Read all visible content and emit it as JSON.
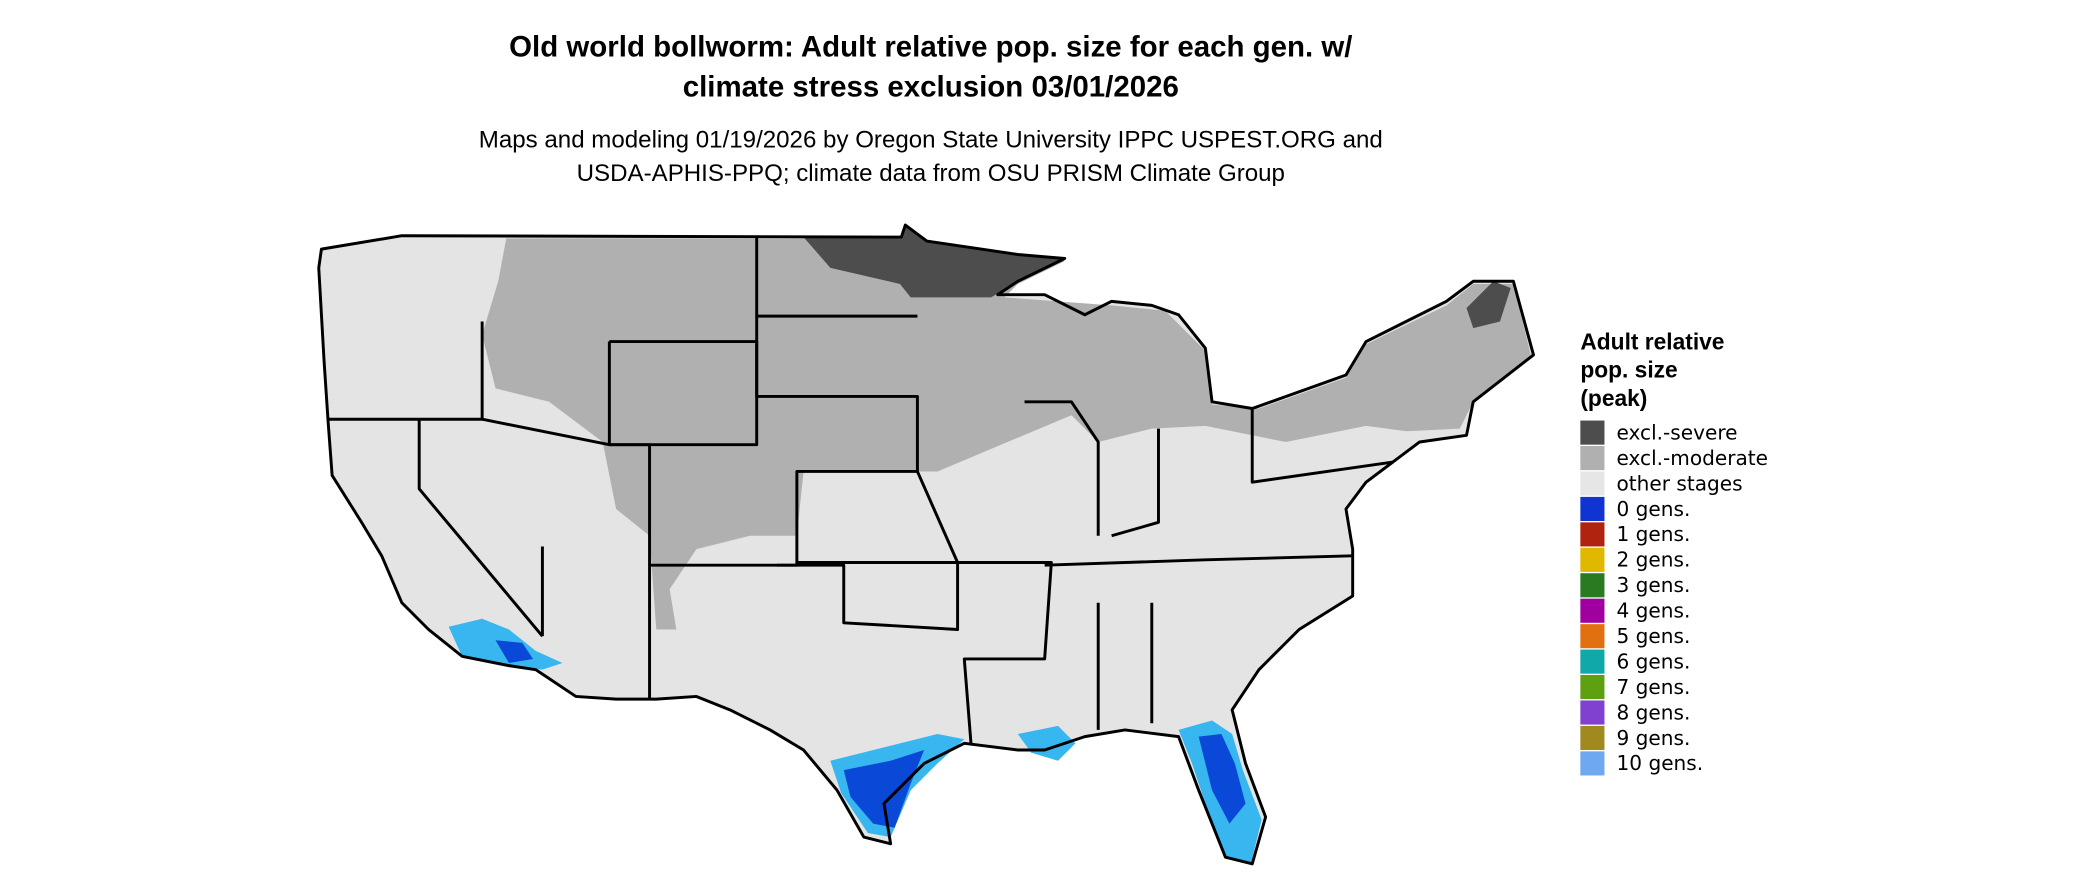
{
  "title_lines": [
    "Old world bollworm: Adult relative pop. size for each gen. w/",
    "climate stress exclusion 03/01/2026"
  ],
  "subtitle_lines": [
    "Maps and modeling 01/19/2026 by Oregon State University IPPC USPEST.ORG and",
    "USDA-APHIS-PPQ; climate data from OSU PRISM Climate Group"
  ],
  "legend": {
    "title_lines": [
      "Adult relative",
      "pop. size",
      "(peak)"
    ],
    "items": [
      {
        "label": "excl.-severe",
        "color": "#4d4d4d"
      },
      {
        "label": "excl.-moderate",
        "color": "#b0b0b0"
      },
      {
        "label": "other stages",
        "color": "#e6e6e6"
      },
      {
        "label": "0 gens.",
        "color": "#1034d1"
      },
      {
        "label": "1 gens.",
        "color": "#b0230f"
      },
      {
        "label": "2 gens.",
        "color": "#e0b800"
      },
      {
        "label": "3 gens.",
        "color": "#2a7a22"
      },
      {
        "label": "4 gens.",
        "color": "#a000a0"
      },
      {
        "label": "5 gens.",
        "color": "#e07010"
      },
      {
        "label": "6 gens.",
        "color": "#10a8a8"
      },
      {
        "label": "7 gens.",
        "color": "#5ea010"
      },
      {
        "label": "8 gens.",
        "color": "#8040d0"
      },
      {
        "label": "9 gens.",
        "color": "#a08a20"
      },
      {
        "label": "10 gens.",
        "color": "#6ea8f0"
      }
    ]
  }
}
